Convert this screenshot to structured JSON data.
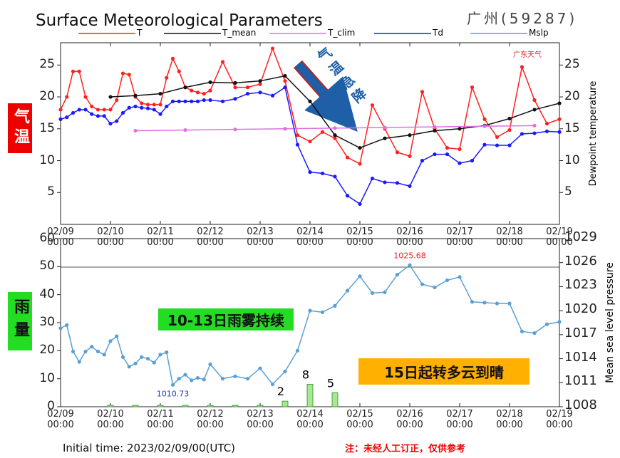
{
  "chart_data": [
    {
      "type": "line",
      "title": "Surface Meteorological Parameters",
      "station": "广州(59287)",
      "xlim": [
        0,
        240
      ],
      "xticks": [
        {
          "value": 0,
          "label": "02/09\n00:00"
        },
        {
          "value": 24,
          "label": "02/10\n00:00"
        },
        {
          "value": 48,
          "label": "02/11\n00:00"
        },
        {
          "value": 72,
          "label": "02/12\n00:00"
        },
        {
          "value": 96,
          "label": "02/13\n00:00"
        },
        {
          "value": 120,
          "label": "02/14\n00:00"
        },
        {
          "value": 144,
          "label": "02/15\n00:00"
        },
        {
          "value": 168,
          "label": "02/16\n00:00"
        },
        {
          "value": 192,
          "label": "02/17\n00:00"
        },
        {
          "value": 216,
          "label": "02/18\n00:00"
        },
        {
          "value": 240,
          "label": "02/19\n00:00"
        }
      ],
      "ylim": [
        0,
        28.5
      ],
      "yticks": [
        5,
        10,
        15,
        20,
        25
      ],
      "y2lim": [
        0,
        28.5
      ],
      "y2ticks": [
        5,
        10,
        15,
        20,
        25
      ],
      "y2label": "Dewpoint temperature",
      "series": [
        {
          "name": "T",
          "color": "#ff2020",
          "x": [
            0,
            3,
            6,
            9,
            12,
            15,
            18,
            21,
            24,
            27,
            30,
            33,
            36,
            39,
            42,
            45,
            48,
            51,
            54,
            57,
            60,
            63,
            66,
            69,
            72,
            78,
            84,
            90,
            96,
            102,
            108,
            114,
            120,
            126,
            132,
            138,
            144,
            150,
            156,
            162,
            168,
            174,
            180,
            186,
            192,
            198,
            204,
            210,
            216,
            222,
            228,
            234,
            240
          ],
          "values": [
            18,
            20,
            24,
            24,
            20,
            18.5,
            18,
            18,
            18,
            19.5,
            23.7,
            23.5,
            20,
            19,
            18.8,
            18.8,
            18.8,
            23,
            26,
            24,
            21.5,
            21,
            20.7,
            20.5,
            21,
            25.5,
            21.5,
            21.5,
            22,
            27.6,
            22.5,
            14,
            13,
            14.5,
            13.5,
            10.5,
            9.5,
            18.7,
            15,
            11.3,
            10.7,
            20.8,
            15,
            12,
            11.8,
            21.5,
            16.5,
            13.7,
            14.8,
            24.7,
            19.5,
            15.8,
            16.5
          ]
        },
        {
          "name": "T_mean",
          "color": "#111111",
          "x": [
            24,
            36,
            48,
            60,
            72,
            84,
            96,
            108,
            120,
            132,
            144,
            156,
            168,
            180,
            192,
            204,
            216,
            228,
            240
          ],
          "values": [
            20,
            20.2,
            20.5,
            21.5,
            22.3,
            22.2,
            22.5,
            23.3,
            19.3,
            14,
            12,
            13.5,
            14,
            14.7,
            15,
            15.5,
            16.6,
            18,
            19
          ]
        },
        {
          "name": "T_clim",
          "color": "#e070e0",
          "x": [
            36,
            60,
            84,
            108,
            132,
            156,
            180,
            204,
            228
          ],
          "values": [
            14.7,
            14.8,
            14.9,
            15,
            15.1,
            15.2,
            15.3,
            15.4,
            15.5
          ]
        },
        {
          "name": "Td",
          "color": "#1a1aff",
          "axis": "y2",
          "x": [
            0,
            3,
            6,
            9,
            12,
            15,
            18,
            21,
            24,
            27,
            30,
            33,
            36,
            39,
            42,
            45,
            48,
            51,
            54,
            57,
            60,
            63,
            66,
            69,
            72,
            78,
            84,
            90,
            96,
            102,
            108,
            114,
            120,
            126,
            132,
            138,
            144,
            150,
            156,
            162,
            168,
            174,
            180,
            186,
            192,
            198,
            204,
            210,
            216,
            222,
            228,
            234,
            240
          ],
          "values": [
            16.5,
            16.8,
            17.5,
            18,
            18,
            17.3,
            17,
            17,
            15.8,
            16.2,
            17.5,
            18.3,
            18.5,
            18.3,
            18.2,
            18,
            17.3,
            18.5,
            19.3,
            19.3,
            19.3,
            19.3,
            19.3,
            19.5,
            19.5,
            19.3,
            19.7,
            20.5,
            20.7,
            20.2,
            21.5,
            12.5,
            8.2,
            8,
            7.5,
            4.5,
            3.2,
            7.2,
            6.6,
            6.5,
            6,
            10,
            11,
            11,
            9.6,
            10,
            12.5,
            12.4,
            12.4,
            14.2,
            14.3,
            14.6,
            14.5
          ]
        }
      ]
    },
    {
      "type": "combo",
      "xlim": [
        0,
        240
      ],
      "xticks": [
        {
          "value": 0,
          "label": "02/09\n00:00"
        },
        {
          "value": 24,
          "label": "02/10\n00:00"
        },
        {
          "value": 48,
          "label": "02/11\n00:00"
        },
        {
          "value": 72,
          "label": "02/12\n00:00"
        },
        {
          "value": 96,
          "label": "02/13\n00:00"
        },
        {
          "value": 120,
          "label": "02/14\n00:00"
        },
        {
          "value": 144,
          "label": "02/15\n00:00"
        },
        {
          "value": 168,
          "label": "02/16\n00:00"
        },
        {
          "value": 192,
          "label": "02/17\n00:00"
        },
        {
          "value": 216,
          "label": "02/18\n00:00"
        },
        {
          "value": 240,
          "label": "02/19\n00:00"
        }
      ],
      "ylim": [
        0,
        60
      ],
      "yticks": [
        0,
        10,
        20,
        30,
        40,
        50,
        60
      ],
      "y2lim": [
        1008,
        1029
      ],
      "y2ticks": [
        1008,
        1011,
        1014,
        1017,
        1020,
        1023,
        1026,
        1029
      ],
      "y2label": "Mean sea level pressure",
      "series": [
        {
          "type": "bar",
          "color": "#a8e890",
          "x": [
            24,
            36,
            48,
            60,
            72,
            84,
            96,
            108,
            120,
            132
          ],
          "values": [
            0.5,
            0.5,
            0.5,
            0.5,
            0.5,
            0.5,
            0.5,
            2,
            8,
            5
          ],
          "value_labels": [
            null,
            null,
            null,
            null,
            null,
            null,
            null,
            "2",
            "8",
            "5"
          ]
        },
        {
          "type": "line",
          "name": "Mslp",
          "color": "#5a9fd4",
          "axis": "y2",
          "x": [
            0,
            3,
            6,
            9,
            12,
            15,
            18,
            21,
            24,
            27,
            30,
            33,
            36,
            39,
            42,
            45,
            48,
            51,
            54,
            57,
            60,
            63,
            66,
            69,
            72,
            78,
            84,
            90,
            96,
            102,
            108,
            114,
            120,
            126,
            132,
            138,
            144,
            150,
            156,
            162,
            168,
            174,
            180,
            186,
            192,
            198,
            204,
            210,
            216,
            222,
            228,
            234,
            240
          ],
          "values": [
            1017.8,
            1018.2,
            1014.9,
            1013.6,
            1014.9,
            1015.5,
            1014.9,
            1014.5,
            1016.2,
            1016.8,
            1014.2,
            1013,
            1013.4,
            1014.2,
            1014,
            1013.5,
            1014.5,
            1014.8,
            1010.73,
            1011.5,
            1012,
            1011.3,
            1011.6,
            1011.4,
            1013.3,
            1011.5,
            1011.8,
            1011.5,
            1012.8,
            1010.8,
            1012.4,
            1015,
            1020,
            1019.8,
            1020.6,
            1022.5,
            1024.3,
            1022.2,
            1022.3,
            1024.5,
            1025.68,
            1023.3,
            1022.9,
            1023.8,
            1024.2,
            1021.1,
            1021,
            1020.9,
            1020.9,
            1017.4,
            1017.2,
            1018.3,
            1018.6
          ],
          "max_label": "1025.68",
          "min_label": "1010.73"
        }
      ]
    }
  ],
  "annotations": {
    "drop": "气温急降",
    "fog": "10-13日雨雾持续",
    "clear": "15日起转多云到晴",
    "temp_label": "气温",
    "rain_label": "雨量",
    "initial_time": "Initial time: 2023/02/09/00(UTC)",
    "note": "注：未经人工订正，仅供参考",
    "logo": "广东天气"
  }
}
